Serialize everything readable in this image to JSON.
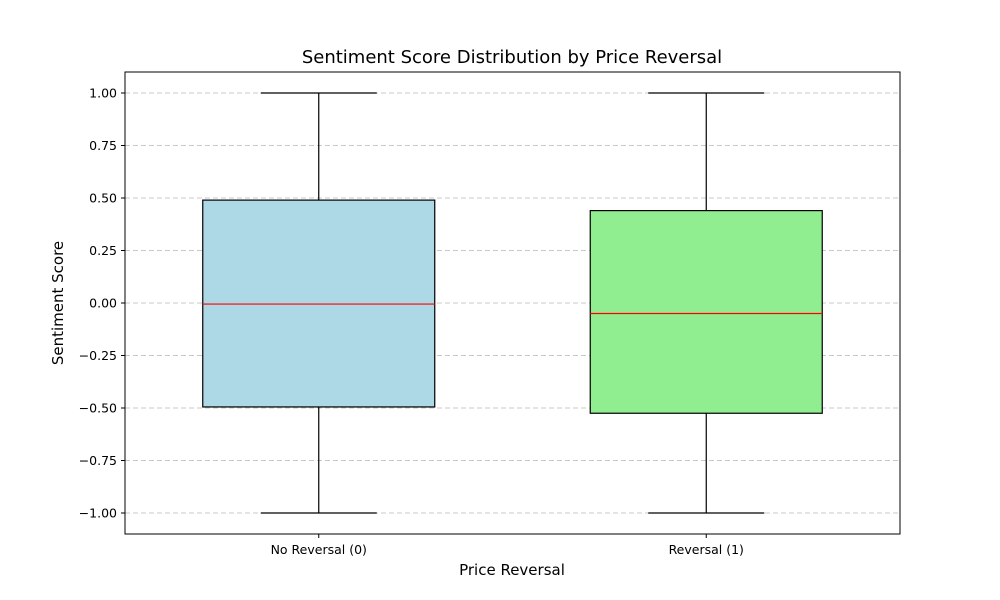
{
  "chart_data": {
    "type": "box",
    "title": "Sentiment Score Distribution by Price Reversal",
    "xlabel": "Price Reversal",
    "ylabel": "Sentiment Score",
    "ylim": [
      -1.1,
      1.1
    ],
    "yticks": [
      1.0,
      0.75,
      0.5,
      0.25,
      0.0,
      -0.25,
      -0.5,
      -0.75,
      -1.0
    ],
    "ytick_labels": [
      "1.00",
      "0.75",
      "0.50",
      "0.25",
      "0.00",
      "−0.25",
      "−0.50",
      "−0.75",
      "−1.00"
    ],
    "grid": {
      "axis": "y",
      "style": "dashed",
      "color": "#c8c8c8"
    },
    "categories": [
      "No Reversal (0)",
      "Reversal (1)"
    ],
    "boxes": [
      {
        "category": "No Reversal (0)",
        "whisker_low": -1.0,
        "q1": -0.495,
        "median": -0.005,
        "q3": 0.49,
        "whisker_high": 1.0,
        "fill": "#add8e6"
      },
      {
        "category": "Reversal (1)",
        "whisker_low": -1.0,
        "q1": -0.525,
        "median": -0.05,
        "q3": 0.44,
        "whisker_high": 1.0,
        "fill": "#90ee90"
      }
    ],
    "median_color": "#ff0000"
  }
}
